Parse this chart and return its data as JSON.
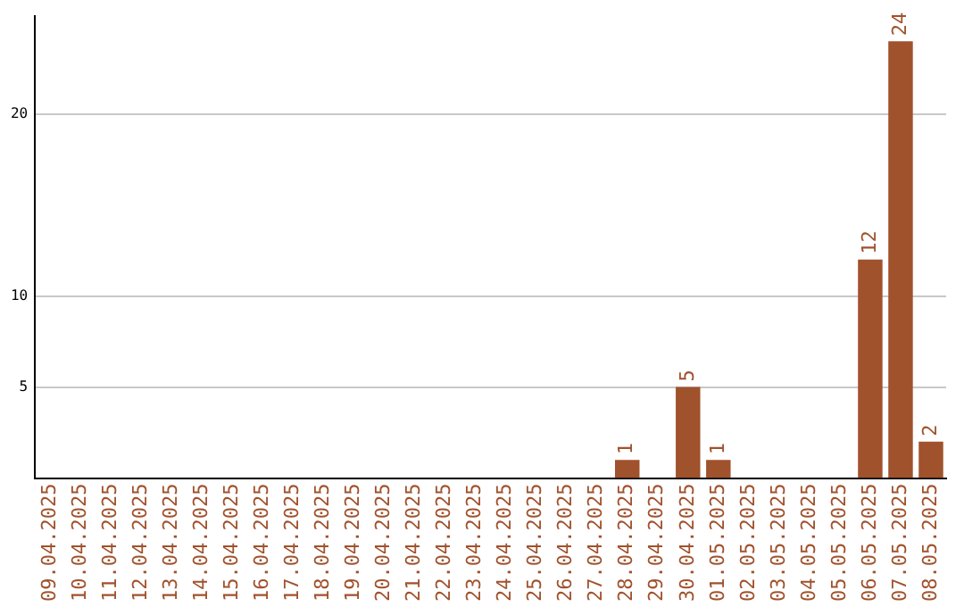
{
  "chart_data": {
    "type": "bar",
    "categories": [
      "09.04.2025",
      "10.04.2025",
      "11.04.2025",
      "12.04.2025",
      "13.04.2025",
      "14.04.2025",
      "15.04.2025",
      "16.04.2025",
      "17.04.2025",
      "18.04.2025",
      "19.04.2025",
      "20.04.2025",
      "21.04.2025",
      "22.04.2025",
      "23.04.2025",
      "24.04.2025",
      "25.04.2025",
      "26.04.2025",
      "27.04.2025",
      "28.04.2025",
      "29.04.2025",
      "30.04.2025",
      "01.05.2025",
      "02.05.2025",
      "03.05.2025",
      "04.05.2025",
      "05.05.2025",
      "06.05.2025",
      "07.05.2025",
      "08.05.2025"
    ],
    "values": [
      0,
      0,
      0,
      0,
      0,
      0,
      0,
      0,
      0,
      0,
      0,
      0,
      0,
      0,
      0,
      0,
      0,
      0,
      0,
      1,
      0,
      5,
      1,
      0,
      0,
      0,
      0,
      12,
      24,
      2
    ],
    "value_labels": [
      null,
      null,
      null,
      null,
      null,
      null,
      null,
      null,
      null,
      null,
      null,
      null,
      null,
      null,
      null,
      null,
      null,
      null,
      null,
      "1",
      null,
      "5",
      "1",
      null,
      null,
      null,
      null,
      "12",
      "24",
      "2"
    ],
    "color": "#a0522d",
    "ylim": [
      0,
      25.4
    ],
    "yticks": [
      5,
      10,
      20
    ],
    "grid": "y",
    "legend": false
  }
}
